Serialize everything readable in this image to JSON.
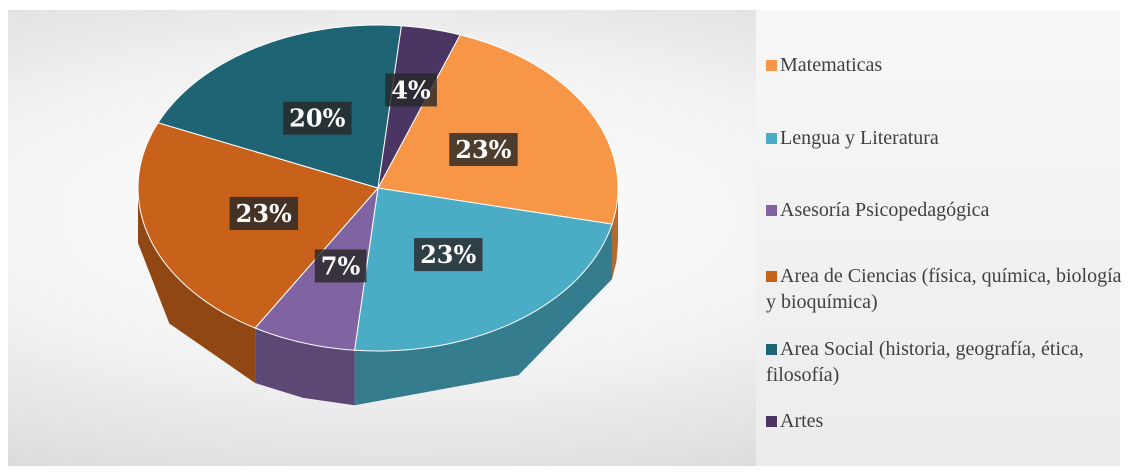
{
  "chart_data": {
    "type": "pie",
    "categories": [
      "Matematicas",
      "Lengua y Literatura",
      "Asesoría Psicopedagógica",
      "Area de Ciencias (física, química, biología y bioquímica)",
      "Area Social (historia, geografía, ética, filosofía)",
      "Artes"
    ],
    "values": [
      23,
      23,
      7,
      23,
      20,
      4
    ],
    "value_labels": [
      "23%",
      "23%",
      "7%",
      "23%",
      "20%",
      "4%"
    ],
    "colors": [
      "#f79646",
      "#4bacc6",
      "#8064a2",
      "#c8621a",
      "#1f6475",
      "#4a3563"
    ],
    "legend": "right"
  }
}
